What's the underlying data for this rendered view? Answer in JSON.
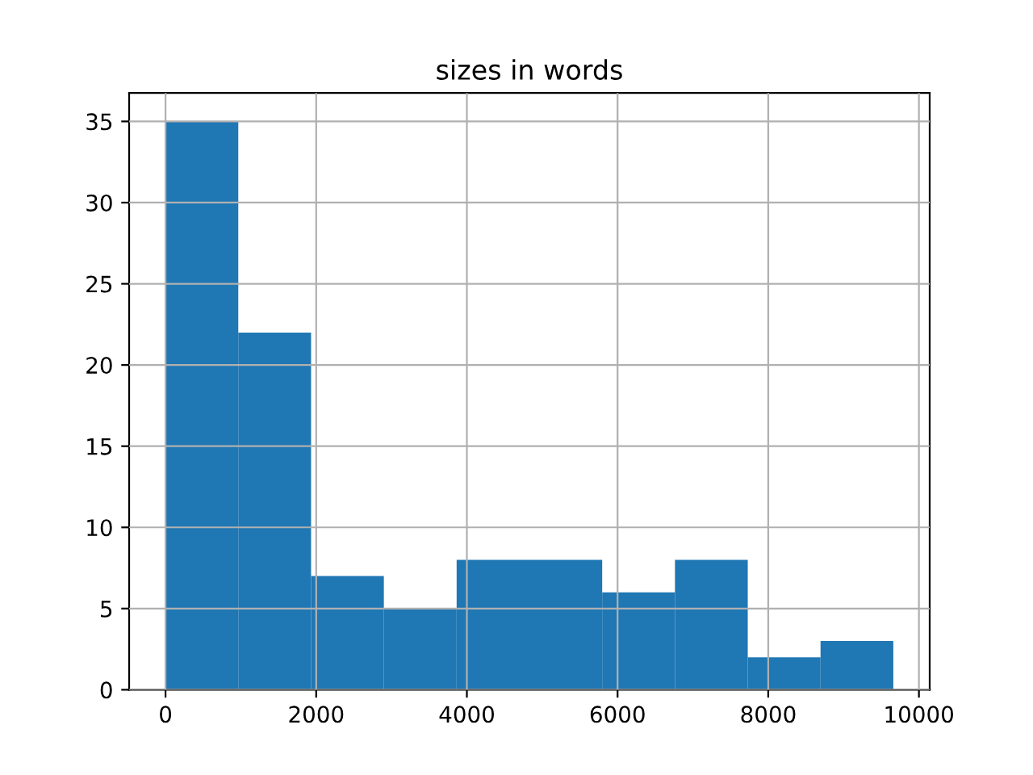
{
  "chart_data": {
    "type": "histogram",
    "title": "sizes in words",
    "bins": [
      0,
      966,
      1932,
      2898,
      3864,
      4830,
      5796,
      6762,
      7728,
      8694,
      9660
    ],
    "values": [
      35,
      22,
      7,
      5,
      8,
      8,
      6,
      8,
      2,
      3
    ],
    "color": "#1f77b4",
    "xlim": [
      -483,
      10143
    ],
    "xticks": [
      0,
      2000,
      4000,
      6000,
      8000,
      10000
    ],
    "ylim": [
      0,
      36.75
    ],
    "yticks": [
      0,
      5,
      10,
      15,
      20,
      25,
      30,
      35
    ],
    "grid": true,
    "legend": false
  }
}
